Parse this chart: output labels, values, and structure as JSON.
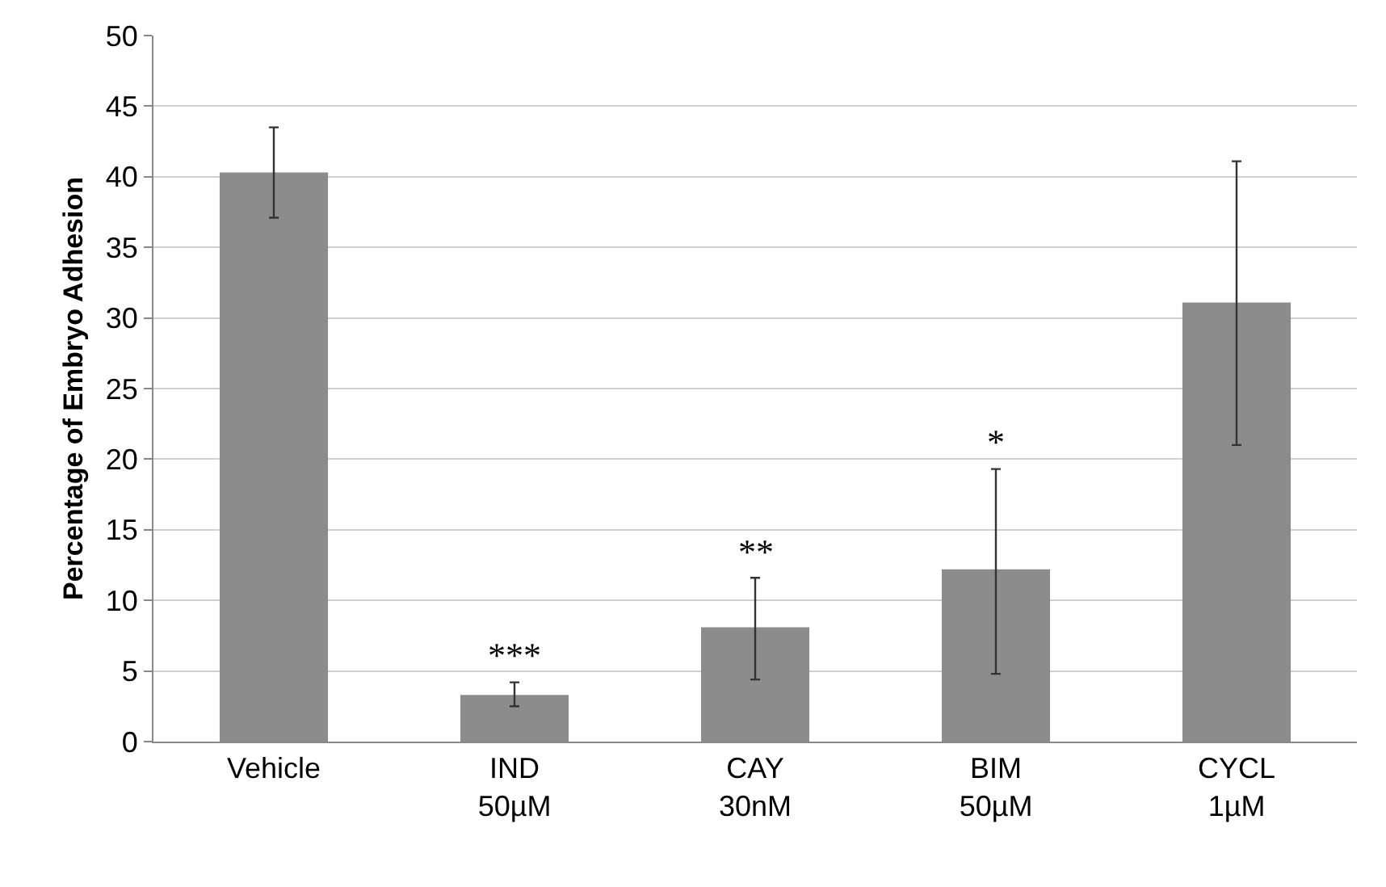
{
  "chart_data": {
    "type": "bar",
    "ylabel": "Percentage of Embryo Adhesion",
    "categories": [
      "Vehicle",
      "IND\n50µM",
      "CAY\n30nM",
      "BIM\n50µM",
      "CYCL\n1µM"
    ],
    "values": [
      40.3,
      3.3,
      8.1,
      12.2,
      31.1
    ],
    "color": "#8c8c8c",
    "errors": [
      [
        37.1,
        43.5
      ],
      [
        2.5,
        4.2
      ],
      [
        4.4,
        11.6
      ],
      [
        4.8,
        19.3
      ],
      [
        21.0,
        41.1
      ]
    ],
    "ylim": [
      0,
      50
    ],
    "yticks": [
      0,
      5,
      10,
      15,
      20,
      25,
      30,
      35,
      40,
      45,
      50
    ],
    "grid": "y",
    "annotations": [
      {
        "text": "***",
        "x": "IND\n50µM",
        "y": 4.2
      },
      {
        "text": "**",
        "x": "CAY\n30nM",
        "y": 11.6
      },
      {
        "text": "*",
        "x": "BIM\n50µM",
        "y": 19.3
      }
    ]
  }
}
